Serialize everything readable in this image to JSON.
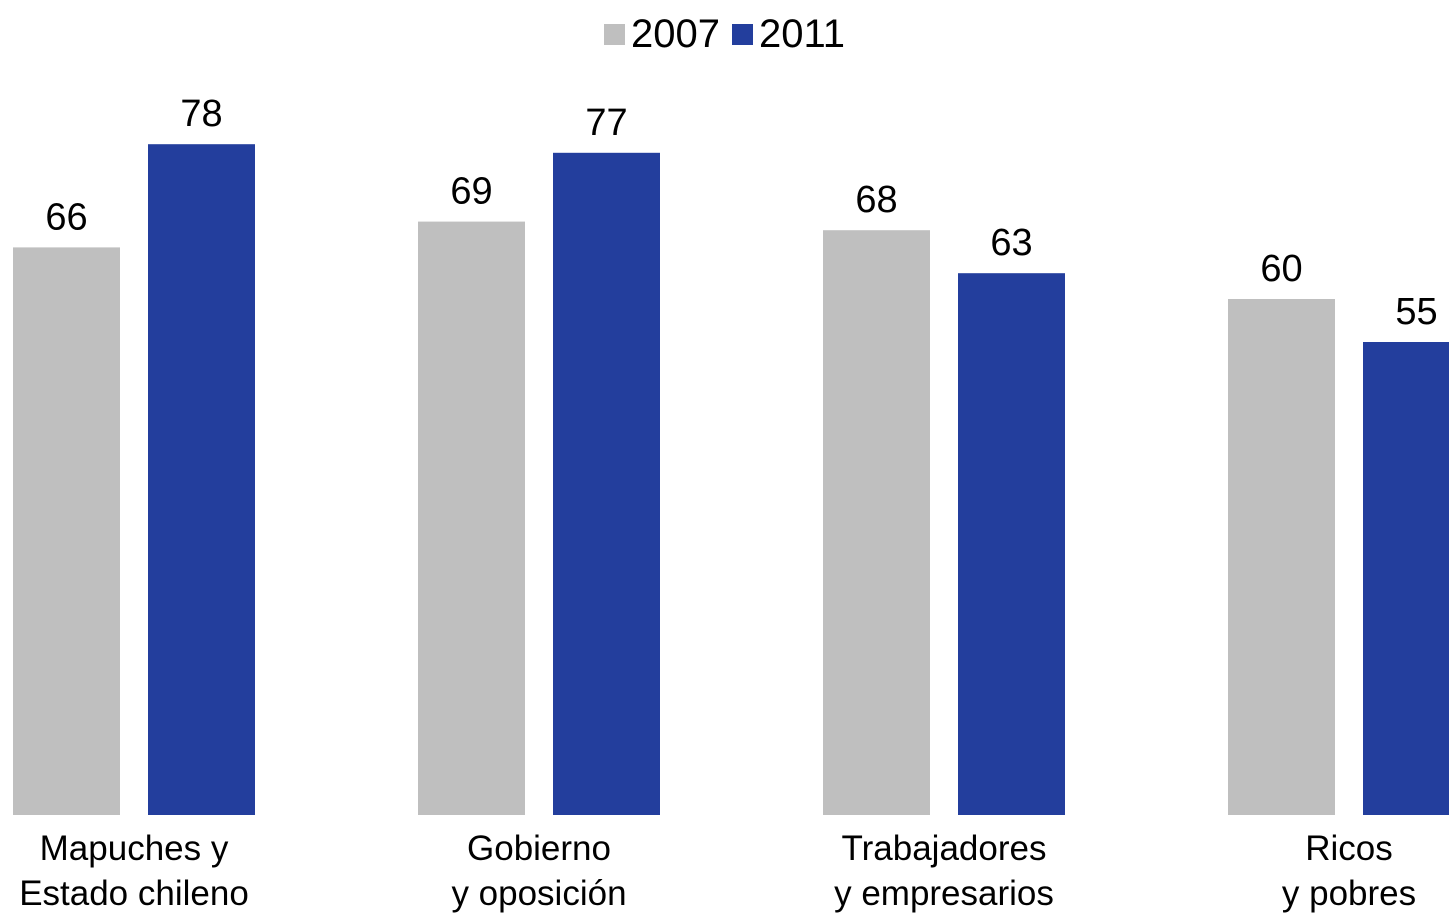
{
  "legend": {
    "items": [
      {
        "label": "2007",
        "color": "#BFBFBF"
      },
      {
        "label": "2011",
        "color": "#233E9D"
      }
    ]
  },
  "chart_data": {
    "type": "bar",
    "categories": [
      [
        "Mapuches y",
        "Estado chileno"
      ],
      [
        "Gobierno",
        "y oposición"
      ],
      [
        "Trabajadores",
        "y empresarios"
      ],
      [
        "Ricos",
        "y pobres"
      ]
    ],
    "series": [
      {
        "name": "2007",
        "color": "#BFBFBF",
        "values": [
          66,
          69,
          68,
          60
        ]
      },
      {
        "name": "2011",
        "color": "#233E9D",
        "values": [
          78,
          77,
          63,
          55
        ]
      }
    ],
    "title": "",
    "xlabel": "",
    "ylabel": "",
    "ylim": [
      0,
      100
    ],
    "grid": false,
    "legend_position": "top-center",
    "data_labels": true
  }
}
